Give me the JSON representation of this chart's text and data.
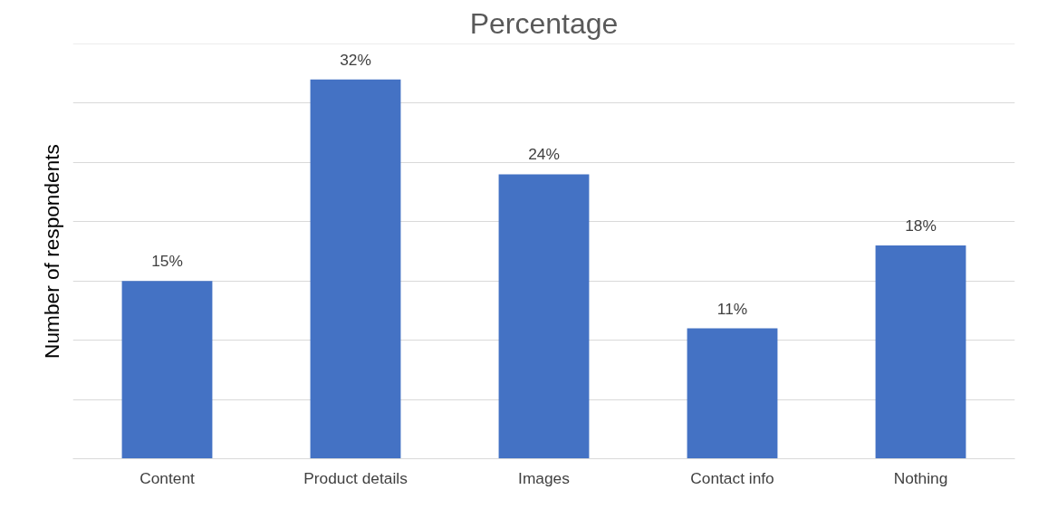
{
  "chart_data": {
    "type": "bar",
    "title": "Percentage",
    "ylabel": "Number of respondents",
    "categories": [
      "Content",
      "Product details",
      "Images",
      "Contact info",
      "Nothing"
    ],
    "values": [
      15,
      32,
      24,
      11,
      18
    ],
    "value_labels": [
      "15%",
      "32%",
      "24%",
      "11%",
      "18%"
    ],
    "color": "#4472c4",
    "ylim": [
      0,
      35
    ],
    "yticks": [
      {
        "value": 0,
        "label": null
      },
      {
        "value": 5,
        "label": null
      },
      {
        "value": 10,
        "label": null
      },
      {
        "value": 15,
        "label": null
      },
      {
        "value": 20,
        "label": null
      },
      {
        "value": 25,
        "label": null
      },
      {
        "value": 30,
        "label": null
      },
      {
        "value": 35,
        "label": null
      }
    ],
    "grid": "y",
    "tick_labels": "x"
  }
}
